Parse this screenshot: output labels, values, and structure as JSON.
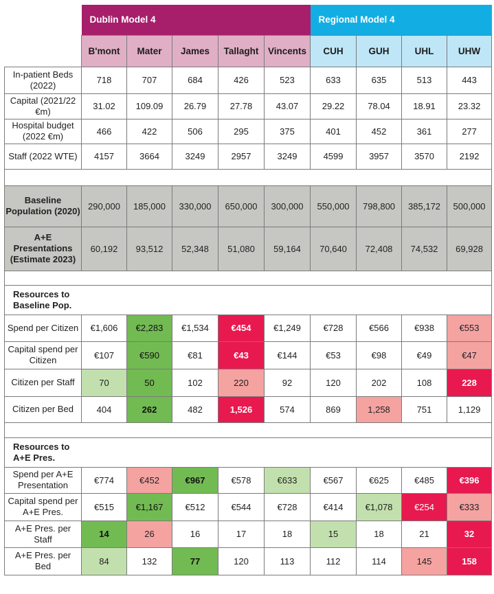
{
  "header": {
    "dublin_group": "Dublin Model 4",
    "regional_group": "Regional Model 4",
    "hospitals": [
      "B'mont",
      "Mater",
      "James",
      "Tallaght",
      "Vincents",
      "CUH",
      "GUH",
      "UHL",
      "UHW"
    ]
  },
  "colors": {
    "dublin_header": "#a71e6b",
    "dublin_subheader": "#e0afc6",
    "regional_header": "#12aee3",
    "regional_subheader": "#bfe6f6",
    "grey_rows": "#c6c6c2",
    "dark_green": "#72bb53",
    "light_green": "#c2e0ad",
    "dark_red": "#e8194f",
    "light_red": "#f4a3a1"
  },
  "rows": {
    "beds": {
      "label": "In-patient Beds (2022)",
      "cells": [
        {
          "v": "718"
        },
        {
          "v": "707"
        },
        {
          "v": "684"
        },
        {
          "v": "426"
        },
        {
          "v": "523"
        },
        {
          "v": "633"
        },
        {
          "v": "635"
        },
        {
          "v": "513"
        },
        {
          "v": "443"
        }
      ]
    },
    "capital": {
      "label": "Capital (2021/22 €m)",
      "cells": [
        {
          "v": "31.02"
        },
        {
          "v": "109.09"
        },
        {
          "v": "26.79"
        },
        {
          "v": "27.78"
        },
        {
          "v": "43.07"
        },
        {
          "v": "29.22"
        },
        {
          "v": "78.04"
        },
        {
          "v": "18.91"
        },
        {
          "v": "23.32"
        }
      ]
    },
    "budget": {
      "label": "Hospital budget (2022 €m)",
      "cells": [
        {
          "v": "466"
        },
        {
          "v": "422"
        },
        {
          "v": "506"
        },
        {
          "v": "295"
        },
        {
          "v": "375"
        },
        {
          "v": "401"
        },
        {
          "v": "452"
        },
        {
          "v": "361"
        },
        {
          "v": "277"
        }
      ]
    },
    "staff": {
      "label": "Staff (2022 WTE)",
      "cells": [
        {
          "v": "4157"
        },
        {
          "v": "3664"
        },
        {
          "v": "3249"
        },
        {
          "v": "2957"
        },
        {
          "v": "3249"
        },
        {
          "v": "4599"
        },
        {
          "v": "3957"
        },
        {
          "v": "3570"
        },
        {
          "v": "2192"
        }
      ]
    },
    "population": {
      "label": "Baseline Population (2020)",
      "cells": [
        {
          "v": "290,000"
        },
        {
          "v": "185,000"
        },
        {
          "v": "330,000"
        },
        {
          "v": "650,000"
        },
        {
          "v": "300,000"
        },
        {
          "v": "550,000"
        },
        {
          "v": "798,800"
        },
        {
          "v": "385,172"
        },
        {
          "v": "500,000"
        }
      ]
    },
    "presentations": {
      "label": "A+E Presentations (Estimate 2023)",
      "cells": [
        {
          "v": "60,192"
        },
        {
          "v": "93,512"
        },
        {
          "v": "52,348"
        },
        {
          "v": "51,080"
        },
        {
          "v": "59,164"
        },
        {
          "v": "70,640"
        },
        {
          "v": "72,408"
        },
        {
          "v": "74,532"
        },
        {
          "v": "69,928"
        }
      ]
    },
    "section_pop": {
      "label": "Resources to Baseline Pop."
    },
    "spend_citizen": {
      "label": "Spend per Citizen",
      "cells": [
        {
          "v": "€1,606"
        },
        {
          "v": "€2,283",
          "c": "dg"
        },
        {
          "v": "€1,534"
        },
        {
          "v": "€454",
          "c": "dr",
          "b": true
        },
        {
          "v": "€1,249"
        },
        {
          "v": "€728"
        },
        {
          "v": "€566"
        },
        {
          "v": "€938"
        },
        {
          "v": "€553",
          "c": "lr"
        }
      ]
    },
    "capital_citizen": {
      "label": "Capital spend per Citizen",
      "cells": [
        {
          "v": "€107"
        },
        {
          "v": "€590",
          "c": "dg"
        },
        {
          "v": "€81"
        },
        {
          "v": "€43",
          "c": "dr",
          "b": true
        },
        {
          "v": "€144"
        },
        {
          "v": "€53"
        },
        {
          "v": "€98"
        },
        {
          "v": "€49"
        },
        {
          "v": "€47",
          "c": "lr"
        }
      ]
    },
    "citizen_staff": {
      "label": "Citizen per Staff",
      "cells": [
        {
          "v": "70",
          "c": "lg"
        },
        {
          "v": "50",
          "c": "dg"
        },
        {
          "v": "102"
        },
        {
          "v": "220",
          "c": "lr"
        },
        {
          "v": "92"
        },
        {
          "v": "120"
        },
        {
          "v": "202"
        },
        {
          "v": "108"
        },
        {
          "v": "228",
          "c": "dr",
          "b": true
        }
      ]
    },
    "citizen_bed": {
      "label": "Citizen per Bed",
      "cells": [
        {
          "v": "404"
        },
        {
          "v": "262",
          "c": "dg",
          "b": true
        },
        {
          "v": "482"
        },
        {
          "v": "1,526",
          "c": "dr",
          "b": true
        },
        {
          "v": "574"
        },
        {
          "v": "869"
        },
        {
          "v": "1,258",
          "c": "lr"
        },
        {
          "v": "751"
        },
        {
          "v": "1,129"
        }
      ]
    },
    "section_ae": {
      "label": "Resources to A+E Pres."
    },
    "spend_ae": {
      "label": "Spend per A+E Presentation",
      "cells": [
        {
          "v": "€774"
        },
        {
          "v": "€452",
          "c": "lr"
        },
        {
          "v": "€967",
          "c": "dg",
          "b": true
        },
        {
          "v": "€578"
        },
        {
          "v": "€633",
          "c": "lg"
        },
        {
          "v": "€567"
        },
        {
          "v": "€625"
        },
        {
          "v": "€485"
        },
        {
          "v": "€396",
          "c": "dr",
          "b": true
        }
      ]
    },
    "capital_ae": {
      "label": "Capital spend per A+E Pres.",
      "cells": [
        {
          "v": "€515"
        },
        {
          "v": "€1,167",
          "c": "dg"
        },
        {
          "v": "€512"
        },
        {
          "v": "€544"
        },
        {
          "v": "€728"
        },
        {
          "v": "€414"
        },
        {
          "v": "€1,078",
          "c": "lg"
        },
        {
          "v": "€254",
          "c": "dr"
        },
        {
          "v": "€333",
          "c": "lr"
        }
      ]
    },
    "ae_staff": {
      "label": "A+E Pres. per Staff",
      "cells": [
        {
          "v": "14",
          "c": "dg",
          "b": true
        },
        {
          "v": "26",
          "c": "lr"
        },
        {
          "v": "16"
        },
        {
          "v": "17"
        },
        {
          "v": "18"
        },
        {
          "v": "15",
          "c": "lg"
        },
        {
          "v": "18"
        },
        {
          "v": "21"
        },
        {
          "v": "32",
          "c": "dr",
          "b": true
        }
      ]
    },
    "ae_bed": {
      "label": "A+E Pres. per Bed",
      "cells": [
        {
          "v": "84",
          "c": "lg"
        },
        {
          "v": "132"
        },
        {
          "v": "77",
          "c": "dg",
          "b": true
        },
        {
          "v": "120"
        },
        {
          "v": "113"
        },
        {
          "v": "112"
        },
        {
          "v": "114"
        },
        {
          "v": "145",
          "c": "lr"
        },
        {
          "v": "158",
          "c": "dr",
          "b": true
        }
      ]
    }
  }
}
